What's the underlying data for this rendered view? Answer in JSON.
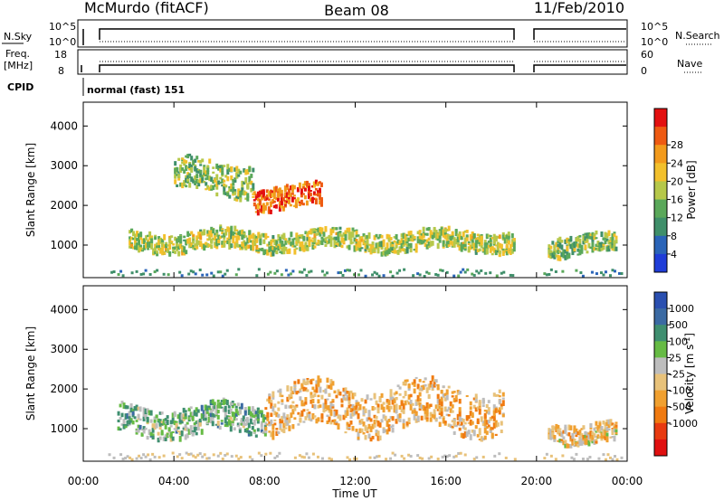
{
  "header": {
    "title": "McMurdo (fitACF)",
    "beam": "Beam 08",
    "date": "11/Feb/2010"
  },
  "strip_panels": {
    "nsky_label": "N.Sky",
    "nsky_ticks": [
      "10^5",
      "10^0"
    ],
    "nsearch_label": "N.Search",
    "nsearch_ticks": [
      "10^5",
      "10^0"
    ],
    "freq_label_1": "Freq.",
    "freq_label_2": "[MHz]",
    "freq_ticks": [
      "18",
      "8"
    ],
    "nave_label": "Nave",
    "nave_ticks": [
      "60",
      "0"
    ],
    "cpid_label": "CPID",
    "cpid_value": "normal (fast) 151"
  },
  "colors": {
    "power_scale": [
      "#1f3dd8",
      "#2a64b8",
      "#3f8f6a",
      "#5aa85a",
      "#b6c84a",
      "#f2c02c",
      "#f29a1c",
      "#ee5a12",
      "#e31010"
    ],
    "velocity_scale": [
      "#2a4fb0",
      "#3b6aa3",
      "#3f8f70",
      "#66bb44",
      "#bdbdbd",
      "#e8c27a",
      "#f0a030",
      "#f07a10",
      "#e83a10",
      "#e01010"
    ]
  },
  "chart_data": [
    {
      "type": "heatmap",
      "panel": "power",
      "ylabel": "Slant Range [km]",
      "yticks": [
        "1000",
        "2000",
        "3000",
        "4000"
      ],
      "ylim": [
        180,
        4600
      ],
      "xticks": [
        "00:00",
        "04:00",
        "08:00",
        "12:00",
        "16:00",
        "20:00",
        "00:00"
      ],
      "xlim_hours": [
        0,
        24
      ],
      "data_gap_hours": [
        19.1,
        20.3
      ],
      "colorbar_label": "Power [dB]",
      "colorbar_ticks": [
        "4",
        "8",
        "12",
        "16",
        "20",
        "24",
        "28"
      ],
      "colorbar_range": [
        0,
        32
      ],
      "echo_regions": [
        {
          "t0": 2.0,
          "t1": 19.0,
          "range_center": 1100,
          "range_width": 300,
          "value": 16,
          "note": "main band"
        },
        {
          "t0": 7.5,
          "t1": 10.5,
          "range_center": 2200,
          "range_width": 350,
          "value": 26,
          "note": "strong echoes"
        },
        {
          "t0": 4.0,
          "t1": 7.5,
          "range_center": 2700,
          "range_width": 500,
          "value": 14,
          "note": "upper patches"
        },
        {
          "t0": 20.5,
          "t1": 23.5,
          "range_center": 1000,
          "range_width": 300,
          "value": 14,
          "note": "post-gap echoes"
        }
      ]
    },
    {
      "type": "heatmap",
      "panel": "velocity",
      "ylabel": "Slant Range [km]",
      "yticks": [
        "1000",
        "2000",
        "3000",
        "4000"
      ],
      "ylim": [
        180,
        4600
      ],
      "xticks": [
        "00:00",
        "04:00",
        "08:00",
        "12:00",
        "16:00",
        "20:00",
        "00:00"
      ],
      "xlim_hours": [
        0,
        24
      ],
      "xlabel": "Time UT",
      "data_gap_hours": [
        19.1,
        20.3
      ],
      "colorbar_label": "Velocity [m s^-1]",
      "colorbar_ticks": [
        "1000",
        "500",
        "100",
        "25",
        "-25",
        "-100",
        "-500",
        "-1000"
      ],
      "colorbar_range": [
        -1000,
        1000
      ],
      "echo_regions": [
        {
          "t0": 1.5,
          "t1": 8.0,
          "range_center": 1200,
          "range_width": 450,
          "value": 300,
          "note": "positive velocity band"
        },
        {
          "t0": 8.0,
          "t1": 18.5,
          "range_center": 1500,
          "range_width": 700,
          "value": -200,
          "note": "negative velocity band"
        },
        {
          "t0": 20.5,
          "t1": 23.5,
          "range_center": 900,
          "range_width": 300,
          "value": -100,
          "note": "post-gap echoes"
        }
      ]
    }
  ]
}
